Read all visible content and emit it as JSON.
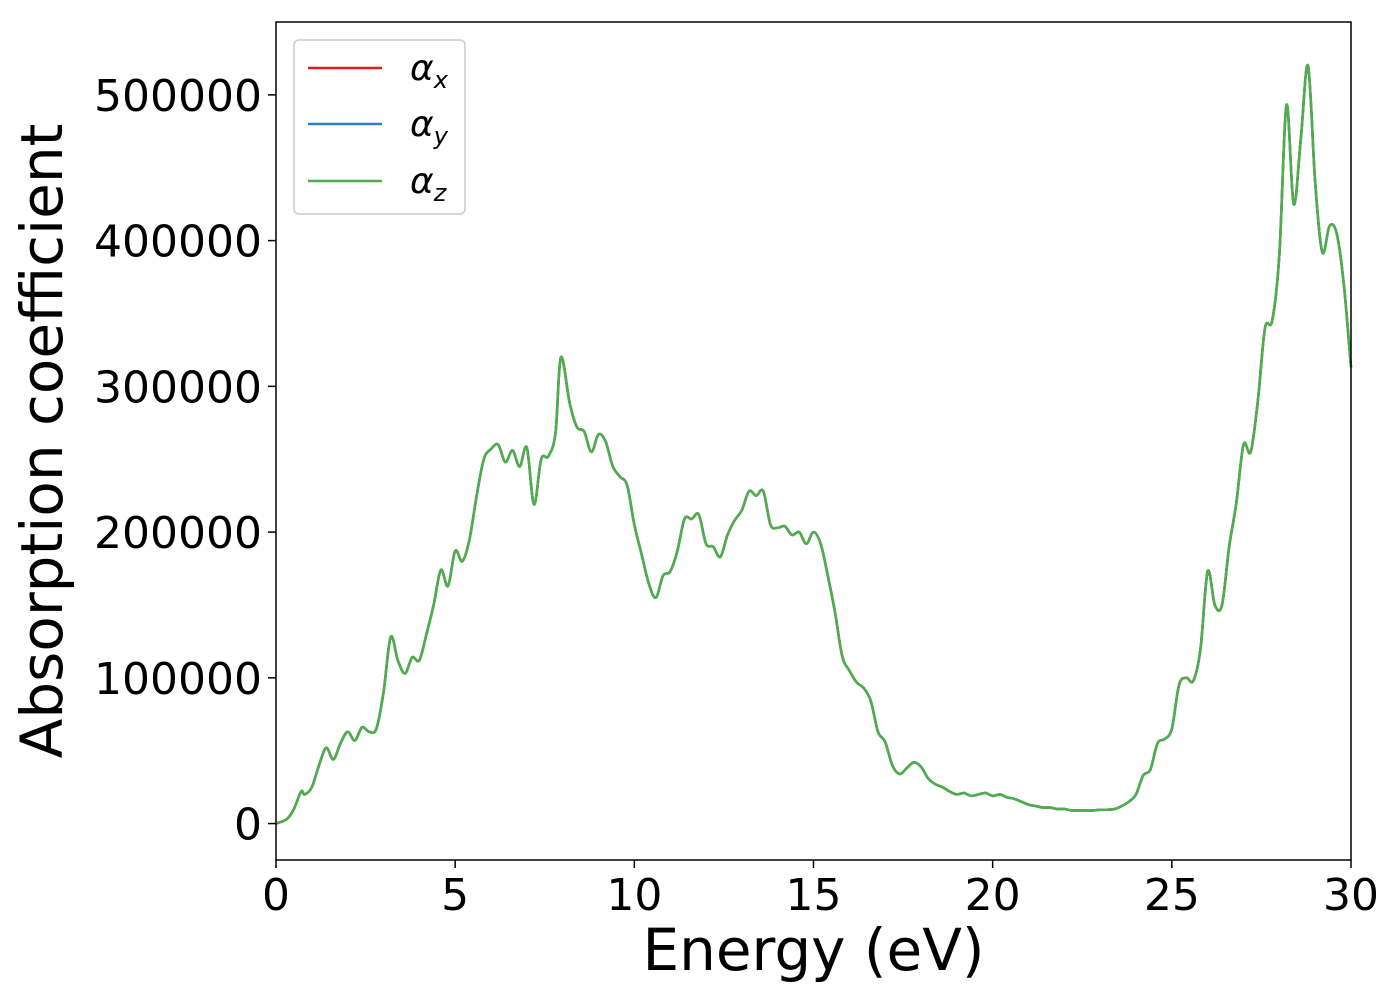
{
  "chart_data": {
    "type": "line",
    "title": "",
    "xlabel": "Energy (eV)",
    "ylabel": "Absorption coefficient",
    "xlim": [
      0,
      30
    ],
    "ylim": [
      -25000,
      550000
    ],
    "x_ticks": [
      0,
      5,
      10,
      15,
      20,
      25,
      30
    ],
    "y_ticks": [
      0,
      100000,
      200000,
      300000,
      400000,
      500000
    ],
    "grid": false,
    "legend_position": "top-left",
    "legend": [
      {
        "symbol": "α",
        "sub": "x",
        "color": "#e41a1c"
      },
      {
        "symbol": "α",
        "sub": "y",
        "color": "#377eb8"
      },
      {
        "symbol": "α",
        "sub": "z",
        "color": "#4daf4a"
      }
    ],
    "x": [
      0,
      0.3,
      0.5,
      0.7,
      0.8,
      1.0,
      1.2,
      1.4,
      1.6,
      1.8,
      2.0,
      2.2,
      2.4,
      2.6,
      2.8,
      3.0,
      3.2,
      3.4,
      3.6,
      3.8,
      4.0,
      4.2,
      4.4,
      4.6,
      4.8,
      5.0,
      5.2,
      5.4,
      5.6,
      5.8,
      6.0,
      6.2,
      6.4,
      6.6,
      6.8,
      7.0,
      7.2,
      7.4,
      7.6,
      7.8,
      7.95,
      8.2,
      8.4,
      8.6,
      8.8,
      9.0,
      9.2,
      9.4,
      9.6,
      9.8,
      10.0,
      10.2,
      10.4,
      10.6,
      10.8,
      11.0,
      11.2,
      11.4,
      11.6,
      11.8,
      12.0,
      12.2,
      12.4,
      12.6,
      12.8,
      13.0,
      13.2,
      13.4,
      13.6,
      13.8,
      14.0,
      14.2,
      14.4,
      14.6,
      14.8,
      15.0,
      15.2,
      15.4,
      15.6,
      15.8,
      16.0,
      16.2,
      16.4,
      16.6,
      16.8,
      17.0,
      17.2,
      17.4,
      17.6,
      17.8,
      18.0,
      18.2,
      18.4,
      18.6,
      18.8,
      19.0,
      19.2,
      19.4,
      19.6,
      19.8,
      20.0,
      20.2,
      20.4,
      20.6,
      20.8,
      21.0,
      21.2,
      21.4,
      21.6,
      21.8,
      22.0,
      22.2,
      22.4,
      22.6,
      22.8,
      23.0,
      23.2,
      23.4,
      23.6,
      23.8,
      24.0,
      24.2,
      24.4,
      24.6,
      24.8,
      25.0,
      25.2,
      25.4,
      25.6,
      25.8,
      26.0,
      26.2,
      26.4,
      26.6,
      26.8,
      27.0,
      27.2,
      27.4,
      27.6,
      27.8,
      28.0,
      28.2,
      28.4,
      28.6,
      28.8,
      29.0,
      29.2,
      29.4,
      29.6,
      29.8,
      30.0
    ],
    "series": [
      {
        "name": "α_x",
        "color": "#e41a1c",
        "values": [
          0,
          3000,
          10000,
          22000,
          20000,
          25000,
          40000,
          52000,
          44000,
          55000,
          63000,
          57000,
          66000,
          63000,
          65000,
          90000,
          128000,
          112000,
          103000,
          114000,
          112000,
          130000,
          150000,
          174000,
          163000,
          187000,
          180000,
          195000,
          225000,
          250000,
          257000,
          260000,
          248000,
          256000,
          245000,
          258000,
          219000,
          250000,
          252000,
          268000,
          320000,
          288000,
          272000,
          269000,
          255000,
          267000,
          262000,
          245000,
          238000,
          232000,
          205000,
          185000,
          165000,
          155000,
          170000,
          173000,
          187000,
          209000,
          209000,
          212000,
          192000,
          190000,
          183000,
          198000,
          208000,
          215000,
          228000,
          225000,
          228000,
          205000,
          203000,
          204000,
          198000,
          200000,
          192000,
          200000,
          192000,
          170000,
          145000,
          115000,
          105000,
          97000,
          93000,
          84000,
          63000,
          56000,
          40000,
          34000,
          38000,
          42000,
          39000,
          31000,
          27000,
          25000,
          22000,
          20000,
          21000,
          19000,
          20000,
          21000,
          19000,
          20000,
          18000,
          17000,
          15000,
          13000,
          12000,
          11000,
          11000,
          10000,
          10000,
          9000,
          9000,
          9000,
          9000,
          9500,
          9500,
          10000,
          12000,
          15000,
          20000,
          33000,
          37000,
          55000,
          58000,
          65000,
          95000,
          100000,
          98000,
          120000,
          173000,
          150000,
          150000,
          190000,
          220000,
          260000,
          255000,
          290000,
          340000,
          345000,
          390000,
          493000,
          425000,
          470000,
          520000,
          440000,
          392000,
          410000,
          405000,
          370000,
          313000
        ]
      },
      {
        "name": "α_y",
        "color": "#377eb8",
        "values": [
          0,
          3000,
          10000,
          22000,
          20000,
          25000,
          40000,
          52000,
          44000,
          55000,
          63000,
          57000,
          66000,
          63000,
          65000,
          90000,
          128000,
          112000,
          103000,
          114000,
          112000,
          130000,
          150000,
          174000,
          163000,
          187000,
          180000,
          195000,
          225000,
          250000,
          257000,
          260000,
          248000,
          256000,
          245000,
          258000,
          219000,
          250000,
          252000,
          268000,
          320000,
          288000,
          272000,
          269000,
          255000,
          267000,
          262000,
          245000,
          238000,
          232000,
          205000,
          185000,
          165000,
          155000,
          170000,
          173000,
          187000,
          209000,
          209000,
          212000,
          192000,
          190000,
          183000,
          198000,
          208000,
          215000,
          228000,
          225000,
          228000,
          205000,
          203000,
          204000,
          198000,
          200000,
          192000,
          200000,
          192000,
          170000,
          145000,
          115000,
          105000,
          97000,
          93000,
          84000,
          63000,
          56000,
          40000,
          34000,
          38000,
          42000,
          39000,
          31000,
          27000,
          25000,
          22000,
          20000,
          21000,
          19000,
          20000,
          21000,
          19000,
          20000,
          18000,
          17000,
          15000,
          13000,
          12000,
          11000,
          11000,
          10000,
          10000,
          9000,
          9000,
          9000,
          9000,
          9500,
          9500,
          10000,
          12000,
          15000,
          20000,
          33000,
          37000,
          55000,
          58000,
          65000,
          95000,
          100000,
          98000,
          120000,
          173000,
          150000,
          150000,
          190000,
          220000,
          260000,
          255000,
          290000,
          340000,
          345000,
          390000,
          493000,
          425000,
          470000,
          520000,
          440000,
          392000,
          410000,
          405000,
          370000,
          313000
        ]
      },
      {
        "name": "α_z",
        "color": "#4daf4a",
        "values": [
          0,
          3000,
          10000,
          22000,
          20000,
          25000,
          40000,
          52000,
          44000,
          55000,
          63000,
          57000,
          66000,
          63000,
          65000,
          90000,
          128000,
          112000,
          103000,
          114000,
          112000,
          130000,
          150000,
          174000,
          163000,
          187000,
          180000,
          195000,
          225000,
          250000,
          257000,
          260000,
          248000,
          256000,
          245000,
          258000,
          219000,
          250000,
          252000,
          268000,
          320000,
          288000,
          272000,
          269000,
          255000,
          267000,
          262000,
          245000,
          238000,
          232000,
          205000,
          185000,
          165000,
          155000,
          170000,
          173000,
          187000,
          209000,
          209000,
          212000,
          192000,
          190000,
          183000,
          198000,
          208000,
          215000,
          228000,
          225000,
          228000,
          205000,
          203000,
          204000,
          198000,
          200000,
          192000,
          200000,
          192000,
          170000,
          145000,
          115000,
          105000,
          97000,
          93000,
          84000,
          63000,
          56000,
          40000,
          34000,
          38000,
          42000,
          39000,
          31000,
          27000,
          25000,
          22000,
          20000,
          21000,
          19000,
          20000,
          21000,
          19000,
          20000,
          18000,
          17000,
          15000,
          13000,
          12000,
          11000,
          11000,
          10000,
          10000,
          9000,
          9000,
          9000,
          9000,
          9500,
          9500,
          10000,
          12000,
          15000,
          20000,
          33000,
          37000,
          55000,
          58000,
          65000,
          95000,
          100000,
          98000,
          120000,
          173000,
          150000,
          150000,
          190000,
          220000,
          260000,
          255000,
          290000,
          340000,
          345000,
          390000,
          493000,
          425000,
          470000,
          520000,
          440000,
          392000,
          410000,
          405000,
          370000,
          313000
        ]
      }
    ]
  }
}
